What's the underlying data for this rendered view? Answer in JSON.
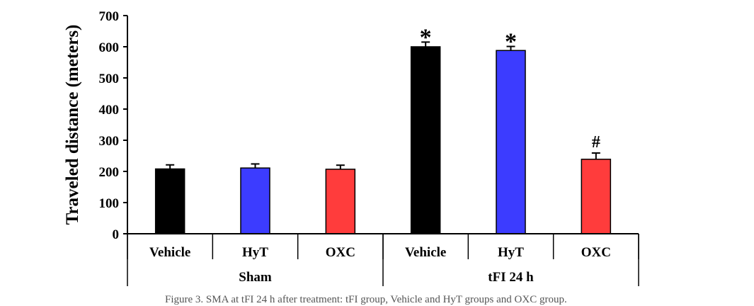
{
  "chart_data": {
    "type": "bar",
    "ylabel": "Traveled distance (meters)",
    "ylim": [
      0,
      700
    ],
    "yticks": [
      0,
      100,
      200,
      300,
      400,
      500,
      600,
      700
    ],
    "grid": false,
    "groups": [
      {
        "name": "Sham",
        "bars": [
          {
            "category": "Vehicle",
            "value": 208,
            "error": 13,
            "color": "#000000",
            "annotation": ""
          },
          {
            "category": "HyT",
            "value": 211,
            "error": 13,
            "color": "#3c3cff",
            "annotation": ""
          },
          {
            "category": "OXC",
            "value": 207,
            "error": 13,
            "color": "#ff3c3c",
            "annotation": ""
          }
        ]
      },
      {
        "name": "tFI 24 h",
        "bars": [
          {
            "category": "Vehicle",
            "value": 600,
            "error": 15,
            "color": "#000000",
            "annotation": "*"
          },
          {
            "category": "HyT",
            "value": 588,
            "error": 13,
            "color": "#3c3cff",
            "annotation": "*"
          },
          {
            "category": "OXC",
            "value": 239,
            "error": 20,
            "color": "#ff3c3c",
            "annotation": "#"
          }
        ]
      }
    ]
  },
  "caption": "Figure 3. SMA at tFI 24 h after treatment: tFI group, Vehicle and HyT groups and OXC group."
}
